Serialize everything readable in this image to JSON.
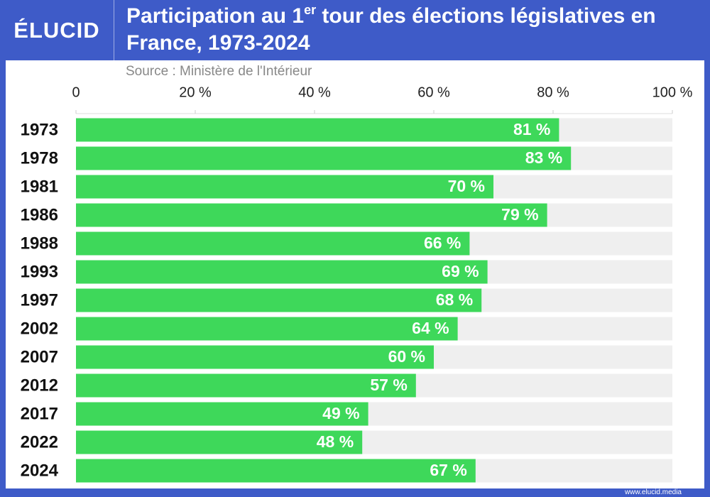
{
  "brand": {
    "logo": "ÉLUCID",
    "url": "www.elucid.media"
  },
  "chart_data": {
    "type": "bar",
    "orientation": "horizontal",
    "title": [
      "Participation au 1",
      "er",
      " tour des élections législatives en France, 1973-2024"
    ],
    "source": "Source : Ministère de l'Intérieur",
    "categories": [
      "1973",
      "1978",
      "1981",
      "1986",
      "1988",
      "1993",
      "1997",
      "2002",
      "2007",
      "2012",
      "2017",
      "2022",
      "2024"
    ],
    "values": [
      81,
      83,
      70,
      79,
      66,
      69,
      68,
      64,
      60,
      57,
      49,
      48,
      67
    ],
    "value_labels": [
      "81 %",
      "83 %",
      "70 %",
      "79 %",
      "66 %",
      "69 %",
      "68 %",
      "64 %",
      "60 %",
      "57 %",
      "49 %",
      "48 %",
      "67 %"
    ],
    "color": "#3ed85a",
    "track_color": "#efefef",
    "xlim": [
      0,
      100
    ],
    "xticks": [
      0,
      {
        "value": 20,
        "label": "20 %"
      },
      {
        "value": 40,
        "label": "40 %"
      },
      {
        "value": 60,
        "label": "60 %"
      },
      {
        "value": 80,
        "label": "80 %"
      },
      {
        "value": 100,
        "label": "100 %"
      }
    ]
  }
}
